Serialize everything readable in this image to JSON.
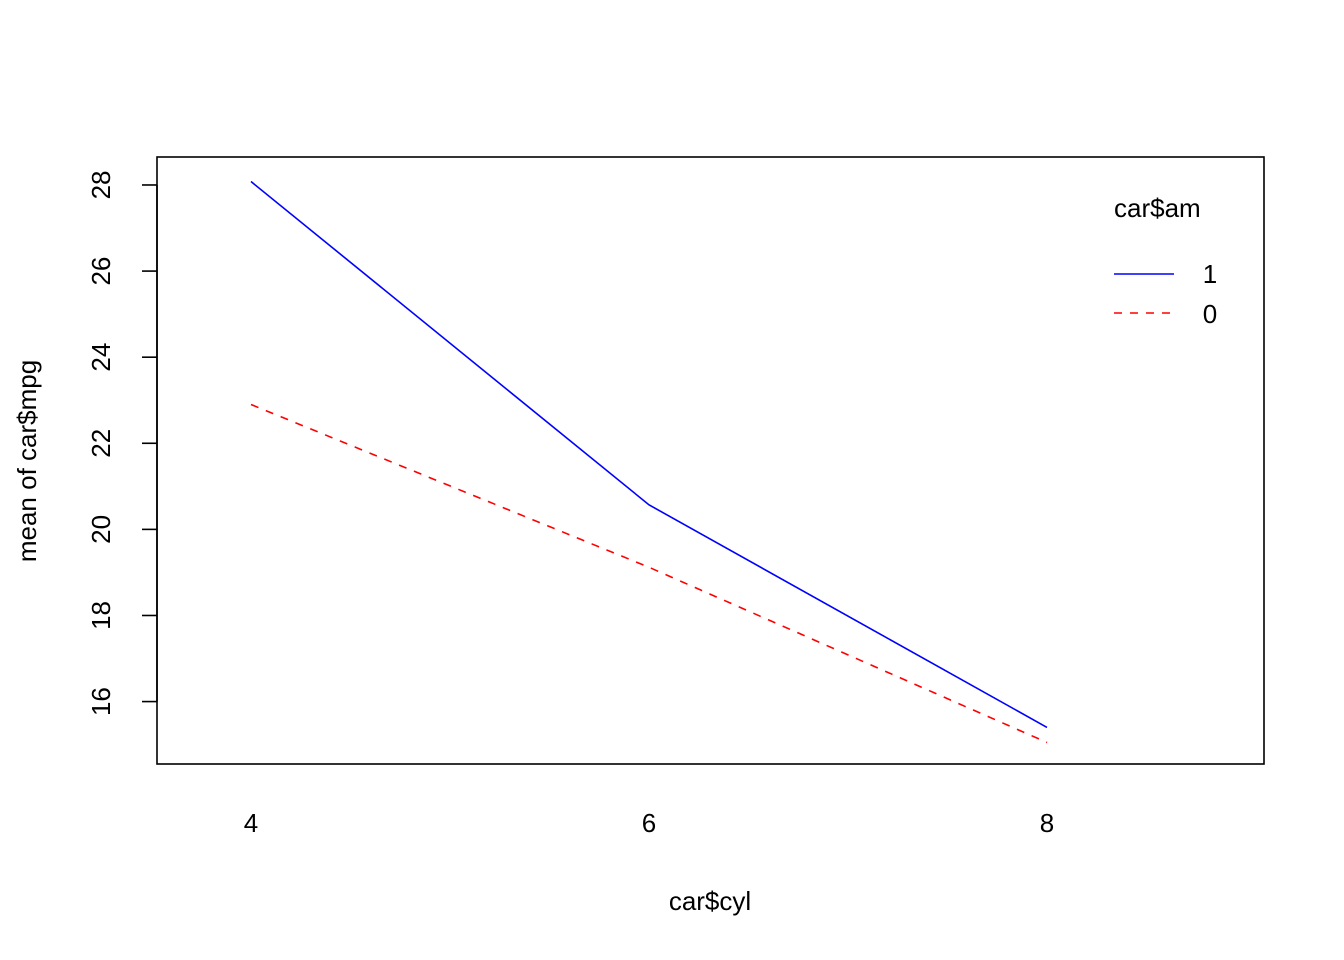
{
  "chart_data": {
    "type": "line",
    "title": "",
    "xlabel": "car$cyl",
    "ylabel": "mean of  car$mpg",
    "categories": [
      "4",
      "6",
      "8"
    ],
    "y_ticks": [
      "16",
      "18",
      "20",
      "22",
      "24",
      "26",
      "28"
    ],
    "ylim": [
      14.55,
      28.65
    ],
    "grid": false,
    "legend": {
      "title": "car$am",
      "position": "top-right"
    },
    "series": [
      {
        "name": "1",
        "values": [
          28.08,
          20.57,
          15.4
        ],
        "color": "#0000FF",
        "dash": "solid"
      },
      {
        "name": "0",
        "values": [
          22.9,
          19.12,
          15.05
        ],
        "color": "#FF0000",
        "dash": "dashed"
      }
    ]
  }
}
